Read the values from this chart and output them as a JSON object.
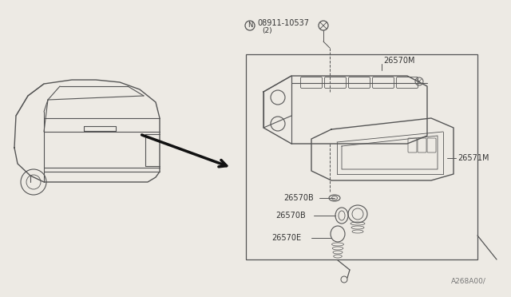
{
  "bg_color": "#edeae4",
  "line_color": "#555555",
  "text_color": "#333333",
  "labels": {
    "N_circle": "N",
    "bolt": "08911-10537",
    "bolt_sub": "(2)",
    "part_M": "26570M",
    "part_1M": "26571M",
    "part_B1": "26570B",
    "part_B2": "26570B",
    "part_E": "26570E"
  },
  "part_number_br": "A268A00/"
}
